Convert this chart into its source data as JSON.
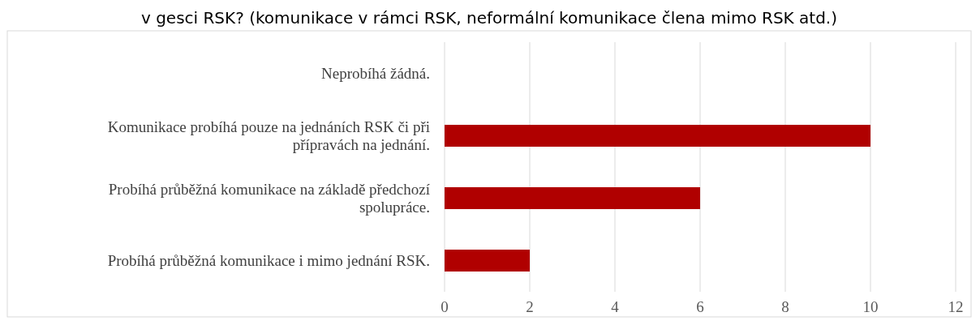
{
  "chart_data": {
    "type": "bar",
    "orientation": "horizontal",
    "title": "v gesci RSK? (komunikace v rámci RSK, neformální komunikace člena mimo RSK atd.)",
    "categories": [
      "Neprobíhá žádná.",
      "Komunikace probíhá pouze na jednáních RSK či při přípravách na jednání.",
      "Probíhá průběžná komunikace na základě předchozí spolupráce.",
      "Probíhá průběžná komunikace i mimo jednání RSK."
    ],
    "values": [
      0,
      10,
      6,
      2
    ],
    "color": "#b00000",
    "xlim": [
      0,
      12
    ],
    "xticks": [
      0,
      2,
      4,
      6,
      8,
      10,
      12
    ],
    "grid": "x"
  }
}
